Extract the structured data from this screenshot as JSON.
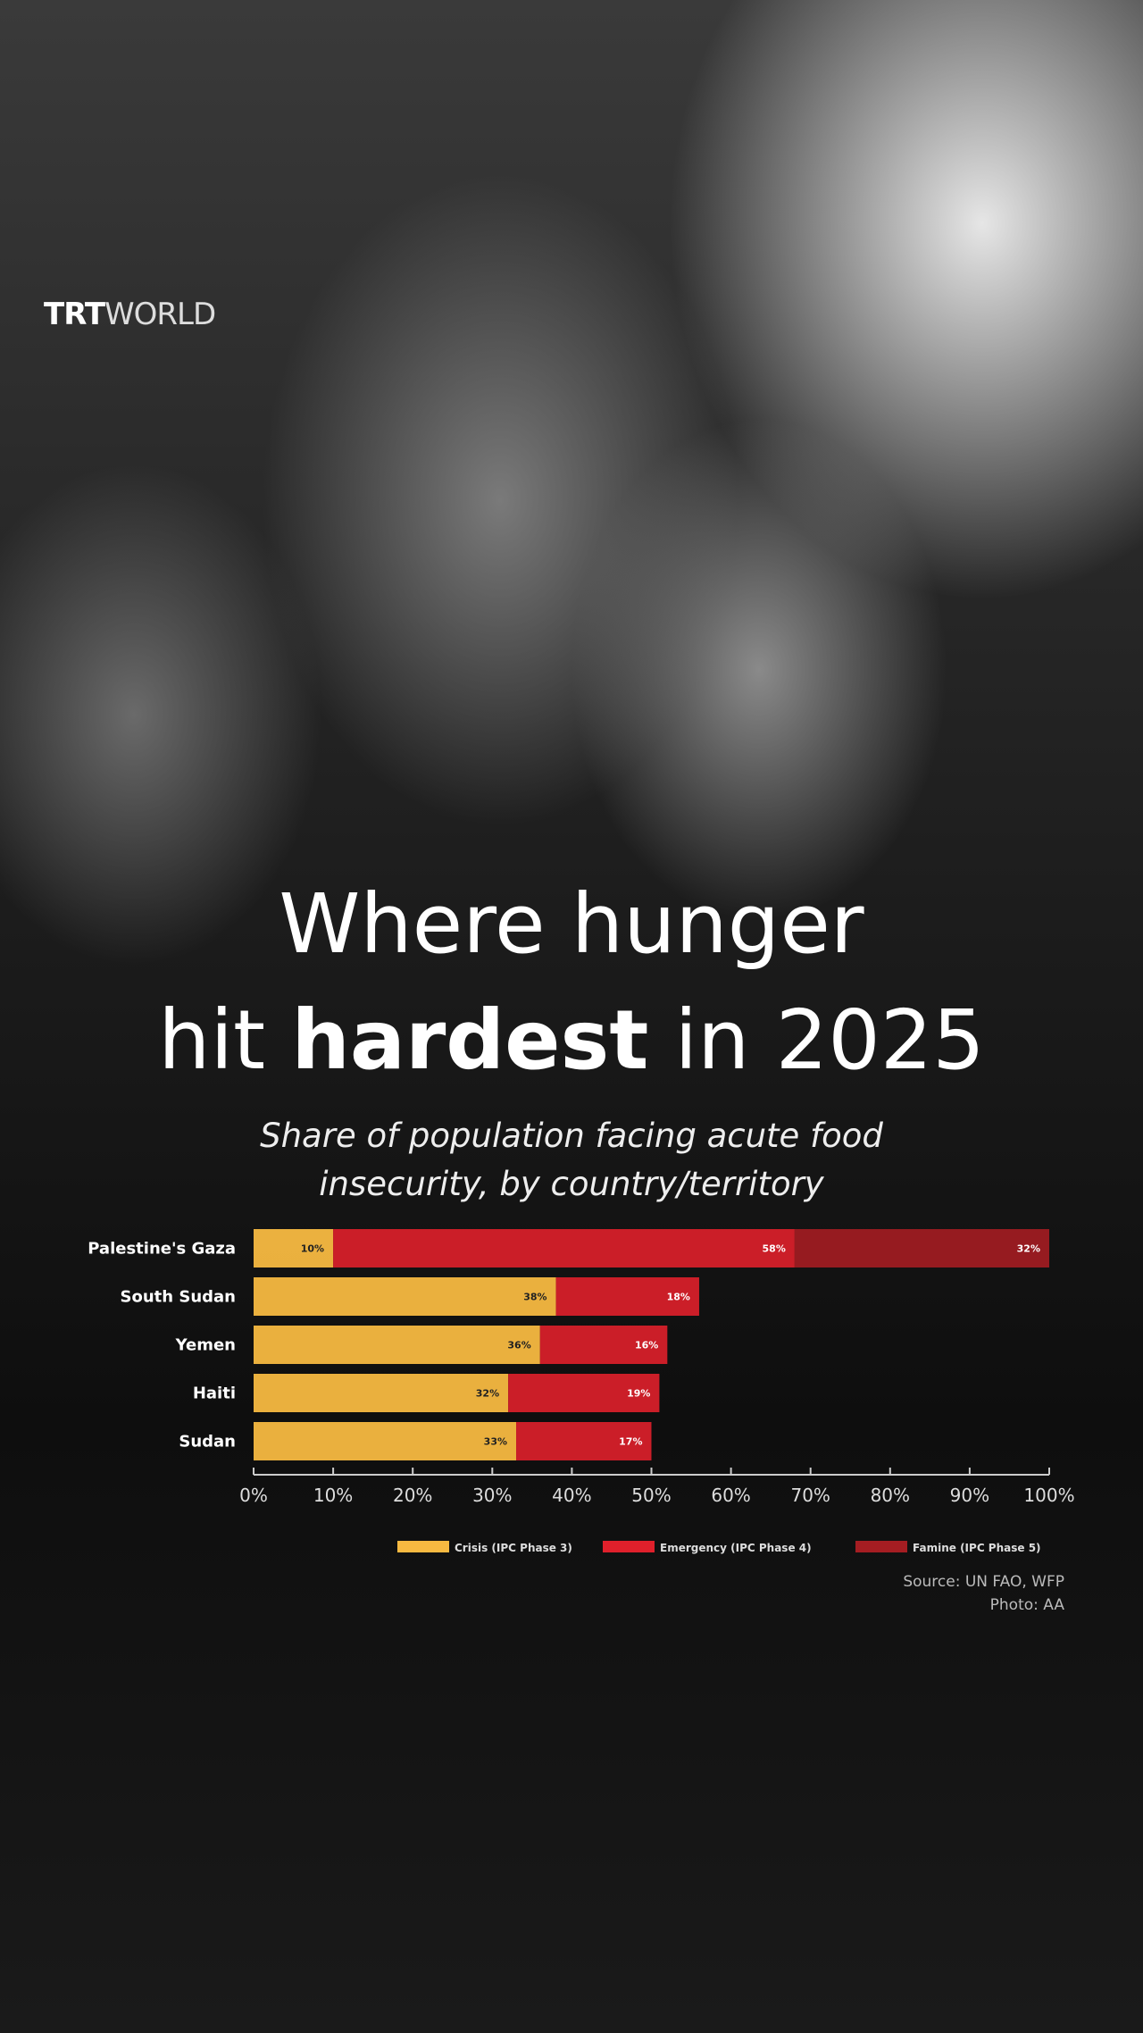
{
  "brand": {
    "logo_bold": "TRT",
    "logo_light": "WORLD"
  },
  "title": {
    "line1": "Where hunger",
    "line2_pre": "hit ",
    "line2_bold": "hardest",
    "line2_post": " in 2025"
  },
  "subtitle": {
    "line1": "Share of population facing acute food",
    "line2": "insecurity, by country/territory"
  },
  "source": {
    "source": "Source: UN FAO, WFP",
    "photo": "Photo: AA"
  },
  "chart_data": {
    "type": "bar",
    "orientation": "horizontal",
    "stacked": true,
    "categories": [
      "Palestine's Gaza",
      "South Sudan",
      "Yemen",
      "Haiti",
      "Sudan"
    ],
    "series": [
      {
        "name": "Crisis (IPC Phase 3)",
        "color": "#f7b941",
        "values": [
          10,
          38,
          36,
          32,
          33
        ]
      },
      {
        "name": "Emergency (IPC Phase 4)",
        "color": "#e0202b",
        "values": [
          58,
          18,
          16,
          19,
          17
        ]
      },
      {
        "name": "Famine (IPC Phase 5)",
        "color": "#a51d22",
        "values": [
          32,
          0,
          0,
          0,
          0
        ]
      }
    ],
    "xlim": [
      0,
      100
    ],
    "xticks": [
      "0%",
      "10%",
      "20%",
      "30%",
      "40%",
      "50%",
      "60%",
      "70%",
      "80%",
      "90%",
      "100%"
    ],
    "legend_position": "bottom",
    "grid": false
  }
}
